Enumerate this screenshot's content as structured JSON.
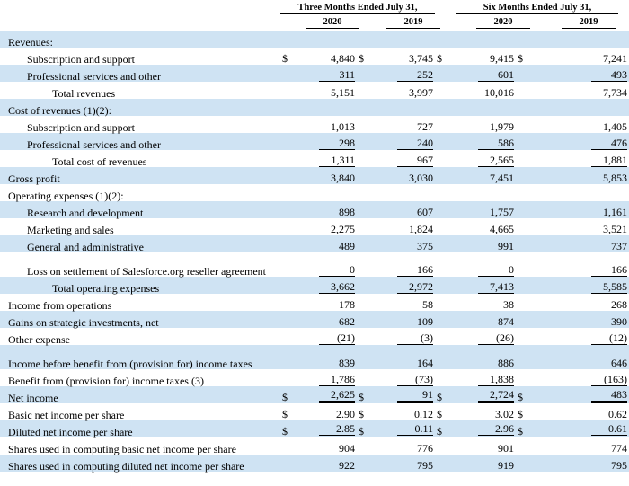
{
  "header": {
    "group1": "Three Months Ended July 31,",
    "group2": "Six Months Ended July 31,",
    "years": [
      "2020",
      "2019",
      "2020",
      "2019"
    ]
  },
  "rows": [
    {
      "label": "Revenues:",
      "indent": 0,
      "values": [
        "",
        "",
        "",
        ""
      ],
      "dollar": false,
      "shade": true
    },
    {
      "label": "Subscription and support",
      "indent": 1,
      "values": [
        "4,840",
        "3,745",
        "9,415",
        "7,241"
      ],
      "dollar": true,
      "shade": false
    },
    {
      "label": "Professional services and other",
      "indent": 1,
      "values": [
        "311",
        "252",
        "601",
        "493"
      ],
      "dollar": false,
      "shade": true,
      "under": "single"
    },
    {
      "label": "Total revenues",
      "indent": 2,
      "values": [
        "5,151",
        "3,997",
        "10,016",
        "7,734"
      ],
      "dollar": false,
      "shade": false
    },
    {
      "label": "Cost of revenues (1)(2):",
      "indent": 0,
      "values": [
        "",
        "",
        "",
        ""
      ],
      "dollar": false,
      "shade": true
    },
    {
      "label": "Subscription and support",
      "indent": 1,
      "values": [
        "1,013",
        "727",
        "1,979",
        "1,405"
      ],
      "dollar": false,
      "shade": false
    },
    {
      "label": "Professional services and other",
      "indent": 1,
      "values": [
        "298",
        "240",
        "586",
        "476"
      ],
      "dollar": false,
      "shade": true,
      "under": "single"
    },
    {
      "label": "Total cost of revenues",
      "indent": 2,
      "values": [
        "1,311",
        "967",
        "2,565",
        "1,881"
      ],
      "dollar": false,
      "shade": false,
      "under": "single"
    },
    {
      "label": "Gross profit",
      "indent": 0,
      "values": [
        "3,840",
        "3,030",
        "7,451",
        "5,853"
      ],
      "dollar": false,
      "shade": true
    },
    {
      "label": "Operating expenses (1)(2):",
      "indent": 0,
      "values": [
        "",
        "",
        "",
        ""
      ],
      "dollar": false,
      "shade": false
    },
    {
      "label": "Research and development",
      "indent": 1,
      "values": [
        "898",
        "607",
        "1,757",
        "1,161"
      ],
      "dollar": false,
      "shade": true
    },
    {
      "label": "Marketing and sales",
      "indent": 1,
      "values": [
        "2,275",
        "1,824",
        "4,665",
        "3,521"
      ],
      "dollar": false,
      "shade": false
    },
    {
      "label": "General and administrative",
      "indent": 1,
      "values": [
        "489",
        "375",
        "991",
        "737"
      ],
      "dollar": false,
      "shade": true
    },
    {
      "label": "Loss on settlement of Salesforce.org reseller agreement",
      "indent": 1,
      "values": [
        "0",
        "166",
        "0",
        "166"
      ],
      "dollar": false,
      "shade": false,
      "tall": true,
      "under": "single"
    },
    {
      "label": "Total operating expenses",
      "indent": 2,
      "values": [
        "3,662",
        "2,972",
        "7,413",
        "5,585"
      ],
      "dollar": false,
      "shade": true,
      "under": "single"
    },
    {
      "label": "Income from operations",
      "indent": 0,
      "values": [
        "178",
        "58",
        "38",
        "268"
      ],
      "dollar": false,
      "shade": false
    },
    {
      "label": "Gains on strategic investments, net",
      "indent": 0,
      "values": [
        "682",
        "109",
        "874",
        "390"
      ],
      "dollar": false,
      "shade": true
    },
    {
      "label": "Other expense",
      "indent": 0,
      "values": [
        "(21)",
        "(3)",
        "(26)",
        "(12)"
      ],
      "dollar": false,
      "shade": false,
      "under": "single"
    },
    {
      "label": "Income before benefit from (provision for) income taxes",
      "indent": 0,
      "values": [
        "839",
        "164",
        "886",
        "646"
      ],
      "dollar": false,
      "shade": true,
      "tall": true
    },
    {
      "label": "Benefit from (provision for) income taxes (3)",
      "indent": 0,
      "values": [
        "1,786",
        "(73)",
        "1,838",
        "(163)"
      ],
      "dollar": false,
      "shade": false,
      "under": "single"
    },
    {
      "label": "Net income",
      "indent": 0,
      "values": [
        "2,625",
        "91",
        "2,724",
        "483"
      ],
      "dollar": true,
      "shade": true,
      "under": "double"
    },
    {
      "label": "Basic net income per share",
      "indent": 0,
      "values": [
        "2.90",
        "0.12",
        "3.02",
        "0.62"
      ],
      "dollar": true,
      "shade": false
    },
    {
      "label": "Diluted net income per share",
      "indent": 0,
      "values": [
        "2.85",
        "0.11",
        "2.96",
        "0.61"
      ],
      "dollar": true,
      "shade": true,
      "under": "double"
    },
    {
      "label": "Shares used in computing basic net income per share",
      "indent": 0,
      "values": [
        "904",
        "776",
        "901",
        "774"
      ],
      "dollar": false,
      "shade": false
    },
    {
      "label": "Shares used in computing diluted net income per share",
      "indent": 0,
      "values": [
        "922",
        "795",
        "919",
        "795"
      ],
      "dollar": false,
      "shade": true
    }
  ],
  "dollar_sign": "$"
}
